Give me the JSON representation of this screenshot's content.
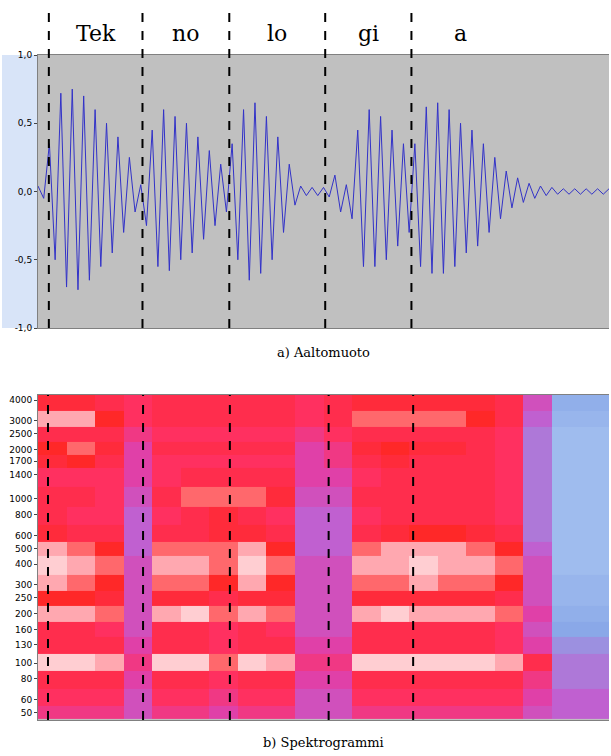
{
  "chart_data": [
    {
      "type": "line",
      "caption": "a) Aaltomuoto",
      "segments": [
        {
          "label": "Tek",
          "start": 1.9,
          "end": 18.3
        },
        {
          "label": "no",
          "start": 18.3,
          "end": 33.5
        },
        {
          "label": "lo",
          "start": 33.5,
          "end": 50.3
        },
        {
          "label": "gi",
          "start": 50.3,
          "end": 65.4
        },
        {
          "label": "a",
          "start": 65.4,
          "end": 82.5
        }
      ],
      "x": [
        0,
        1,
        2,
        3,
        4,
        5,
        6,
        7,
        8,
        9,
        10,
        11,
        12,
        13,
        14,
        15,
        16,
        17,
        18,
        19,
        20,
        21,
        22,
        23,
        24,
        25,
        26,
        27,
        28,
        29,
        30,
        31,
        32,
        33,
        34,
        35,
        36,
        37,
        38,
        39,
        40,
        41,
        42,
        43,
        44,
        45,
        46,
        47,
        48,
        49,
        50,
        51,
        52,
        53,
        54,
        55,
        56,
        57,
        58,
        59,
        60,
        61,
        62,
        63,
        64,
        65,
        66,
        67,
        68,
        69,
        70,
        71,
        72,
        73,
        74,
        75,
        76,
        77,
        78,
        79,
        80,
        81,
        82,
        83,
        84,
        85,
        86,
        87,
        88,
        89,
        90,
        91,
        92,
        93,
        94,
        95,
        96,
        97,
        98,
        99,
        100
      ],
      "values": [
        0.04,
        -0.05,
        0.35,
        -0.5,
        0.72,
        -0.7,
        0.75,
        -0.72,
        0.7,
        -0.65,
        0.6,
        -0.55,
        0.5,
        -0.45,
        0.4,
        -0.3,
        0.25,
        -0.15,
        0.05,
        -0.25,
        0.45,
        -0.55,
        0.6,
        -0.58,
        0.55,
        -0.5,
        0.5,
        -0.45,
        0.4,
        -0.35,
        0.3,
        -0.25,
        0.2,
        -0.15,
        0.35,
        -0.5,
        0.6,
        -0.65,
        0.65,
        -0.6,
        0.55,
        -0.5,
        0.4,
        -0.3,
        0.2,
        -0.1,
        0.04,
        -0.03,
        0.03,
        -0.03,
        0.03,
        -0.04,
        0.12,
        -0.15,
        0.05,
        -0.2,
        0.45,
        -0.55,
        0.6,
        -0.55,
        0.55,
        -0.5,
        0.45,
        -0.4,
        0.35,
        -0.3,
        0.35,
        -0.55,
        0.62,
        -0.6,
        0.65,
        -0.6,
        0.6,
        -0.55,
        0.5,
        -0.45,
        0.45,
        -0.4,
        0.35,
        -0.3,
        0.25,
        -0.2,
        0.15,
        -0.12,
        0.1,
        -0.08,
        0.06,
        -0.05,
        0.04,
        -0.03,
        0.03,
        -0.02,
        0.02,
        -0.02,
        0.02,
        -0.02,
        0.02,
        -0.02,
        0.02,
        -0.02,
        0.02
      ],
      "color": "#3232c8",
      "xlim": [
        0,
        100
      ],
      "ylim": [
        -1,
        1
      ],
      "yticks": [
        {
          "value": 1,
          "label": "1,0"
        },
        {
          "value": 0.5,
          "label": "0,5"
        },
        {
          "value": 0,
          "label": "0,0"
        },
        {
          "value": -0.5,
          "label": "-0,5"
        },
        {
          "value": -1,
          "label": "-1,0"
        }
      ],
      "tick_labels": "y",
      "grid": false
    },
    {
      "type": "heatmap",
      "caption": "b) Spektrogrammi",
      "boundaries": [
        1.75,
        18.4,
        33.6,
        50.9,
        65.7
      ],
      "log": "y",
      "x": [
        2.5,
        7.5,
        12.5,
        17.5,
        22.5,
        27.5,
        32.5,
        37.5,
        42.5,
        47.5,
        52.5,
        57.5,
        62.5,
        67.5,
        72.5,
        77.5,
        82.5,
        87.5,
        92.5,
        97.5
      ],
      "y": [
        50,
        60,
        80,
        100,
        130,
        160,
        200,
        250,
        300,
        400,
        500,
        600,
        800,
        1000,
        1400,
        1700,
        2000,
        2500,
        3000,
        4000
      ],
      "z": [
        [
          6,
          6,
          6,
          5,
          6,
          6,
          5.5,
          6,
          6,
          5,
          5,
          6,
          6,
          6,
          6,
          6,
          6,
          5,
          4.5,
          4.5
        ],
        [
          6.5,
          6.5,
          6.5,
          5,
          6.5,
          6.5,
          6,
          6.5,
          6.5,
          5,
          5,
          6.5,
          6.5,
          6.5,
          6.5,
          6.5,
          6.5,
          5.5,
          4.5,
          4.5
        ],
        [
          7,
          7,
          7,
          5.5,
          7,
          7,
          6.5,
          7,
          7,
          5.5,
          5.5,
          7,
          7,
          7,
          7,
          7,
          7,
          6,
          4,
          4
        ],
        [
          9.5,
          9.5,
          9,
          6,
          9.5,
          9.5,
          8.5,
          9.5,
          9,
          6,
          6,
          9.5,
          9.5,
          9.5,
          9.5,
          9.5,
          9,
          7,
          4,
          4
        ],
        [
          7,
          7,
          7,
          5.5,
          7,
          7,
          6.5,
          7,
          7,
          5.5,
          5.5,
          7,
          7,
          7,
          7,
          7,
          6.5,
          5.5,
          3.5,
          3.5
        ],
        [
          7,
          7,
          6.5,
          5,
          7,
          7,
          6.5,
          7,
          6.5,
          5,
          5,
          7,
          7,
          7,
          7,
          7,
          6.5,
          5,
          3,
          3
        ],
        [
          9,
          9,
          8.5,
          5,
          9,
          9.5,
          8.5,
          9,
          8.5,
          5,
          5,
          9,
          9.5,
          9,
          9,
          9,
          8.5,
          5.5,
          2.5,
          2.5
        ],
        [
          8,
          8,
          7.5,
          5,
          7.5,
          7.5,
          7,
          7.5,
          7.5,
          5,
          5,
          7.5,
          7.5,
          7.5,
          7.5,
          7.5,
          7,
          5,
          2,
          2
        ],
        [
          9,
          8.5,
          8,
          5,
          8.5,
          8.5,
          8,
          9,
          8,
          5,
          5,
          8.5,
          8.5,
          9,
          8.5,
          8.5,
          8,
          5,
          2,
          2
        ],
        [
          9.5,
          9,
          8.5,
          5,
          9,
          9,
          8.5,
          9.5,
          8.5,
          5,
          5,
          9,
          9,
          9.5,
          9,
          9,
          8.5,
          5,
          1.5,
          1.5
        ],
        [
          9,
          8.5,
          8,
          4.5,
          8.5,
          8.5,
          8.5,
          9,
          8,
          4.5,
          4.5,
          8.5,
          9,
          9,
          9,
          8.5,
          8,
          4.5,
          1.5,
          1.5
        ],
        [
          7.5,
          7,
          7,
          4.5,
          7,
          7,
          7.5,
          7.5,
          7,
          4.5,
          4.5,
          7,
          7.5,
          8,
          8,
          7.5,
          7,
          4,
          1.5,
          1.5
        ],
        [
          7,
          6.5,
          6.5,
          4.5,
          6.5,
          7,
          7.5,
          7,
          6.5,
          4.5,
          4.5,
          6.5,
          7,
          7,
          7,
          7,
          6.5,
          4,
          1.5,
          1.5
        ],
        [
          7,
          7,
          6.5,
          5,
          7,
          8.5,
          8.5,
          8.5,
          7.5,
          5,
          5,
          7,
          7,
          7,
          7,
          7,
          6.5,
          4,
          1.5,
          1.5
        ],
        [
          6.5,
          6.5,
          6.5,
          5.5,
          6.5,
          7,
          7,
          7,
          7,
          5.5,
          5.5,
          6.5,
          7,
          7,
          7,
          7,
          6.5,
          4,
          1.5,
          1.5
        ],
        [
          7.5,
          8,
          7,
          5.5,
          6.5,
          6.5,
          6.5,
          6.5,
          6.5,
          5.5,
          6,
          7,
          7.5,
          7,
          7,
          7,
          6.5,
          4,
          1.5,
          1.5
        ],
        [
          8,
          8.5,
          7.5,
          5.5,
          7,
          7,
          7,
          7,
          7,
          5.5,
          6,
          7.5,
          8,
          7.5,
          7.5,
          7,
          6.5,
          4,
          1.5,
          1.5
        ],
        [
          7,
          7,
          7,
          6,
          6.5,
          6.5,
          6.5,
          6.5,
          6.5,
          6,
          6.5,
          7,
          7,
          7,
          7,
          7,
          6.5,
          4,
          1.5,
          1.5
        ],
        [
          9,
          9,
          8,
          6.5,
          7,
          7,
          7,
          7,
          7,
          6.5,
          7,
          8.5,
          8.5,
          8.5,
          8.5,
          8,
          7,
          4.5,
          2,
          2
        ],
        [
          7.5,
          7.5,
          7,
          6.5,
          7,
          7,
          7,
          7,
          7,
          6.5,
          7,
          7.5,
          7.5,
          7.5,
          7.5,
          7.5,
          7,
          5,
          2.5,
          2.5
        ]
      ],
      "zlim": [
        0,
        10
      ],
      "xlim": [
        0,
        100
      ],
      "ylim": [
        45,
        4300
      ],
      "yticks": [
        50,
        60,
        80,
        100,
        130,
        160,
        200,
        250,
        300,
        400,
        500,
        600,
        800,
        1000,
        1400,
        1700,
        2000,
        2500,
        3000,
        4000
      ],
      "tick_labels": "y",
      "grid": false
    }
  ]
}
